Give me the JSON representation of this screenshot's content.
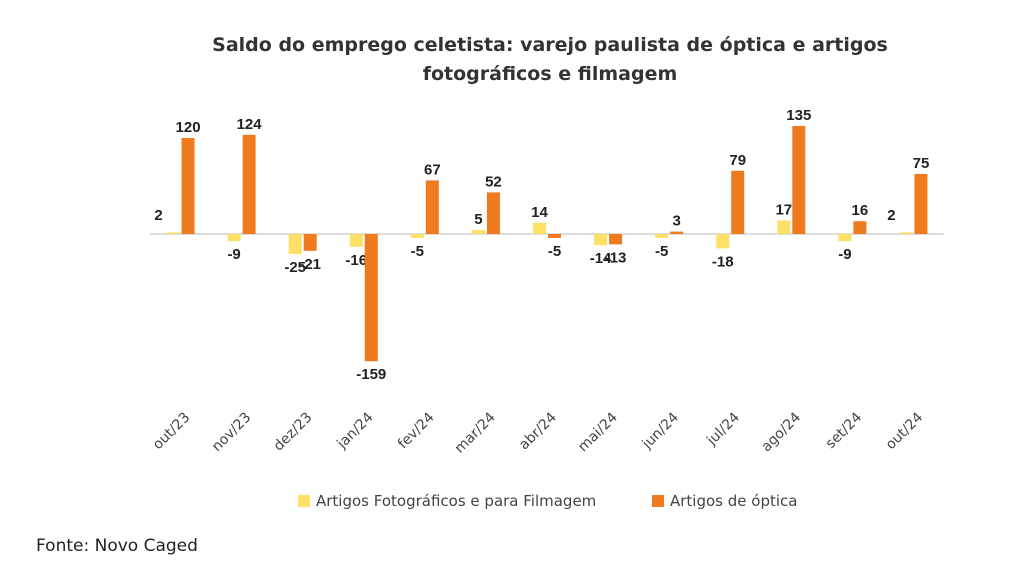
{
  "chart_data": {
    "type": "bar",
    "title_line1": "Saldo do emprego celetista: varejo paulista de óptica e artigos",
    "title_line2": "fotográficos e filmagem",
    "categories": [
      "out/23",
      "nov/23",
      "dez/23",
      "jan/24",
      "fev/24",
      "mar/24",
      "abr/24",
      "mai/24",
      "jun/24",
      "jul/24",
      "ago/24",
      "set/24",
      "out/24"
    ],
    "series": [
      {
        "name": "Artigos Fotográficos e para Filmagem",
        "color": "#FFE066",
        "values": [
          2,
          -9,
          -25,
          -16,
          -5,
          5,
          14,
          -14,
          -5,
          -18,
          17,
          -9,
          2
        ]
      },
      {
        "name": "Artigos de óptica",
        "color": "#F07A1E",
        "values": [
          120,
          124,
          -21,
          -159,
          67,
          52,
          -5,
          -13,
          3,
          79,
          135,
          16,
          75
        ]
      }
    ],
    "ylim": [
      -159,
      135
    ],
    "grid": false,
    "legend_position": "bottom"
  },
  "source": "Fonte: Novo Caged"
}
